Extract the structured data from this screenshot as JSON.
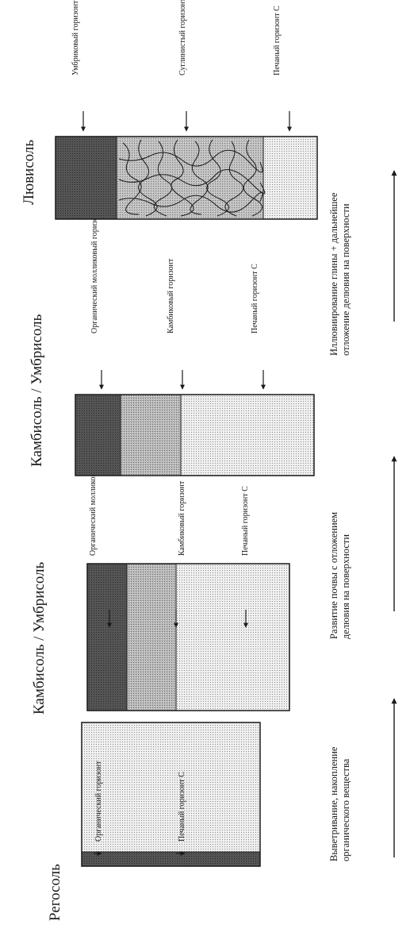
{
  "profiles": [
    {
      "name": "Регосоль",
      "horizons": [
        {
          "label": "Органический горизонт"
        },
        {
          "label": "Печаный горизонт С"
        }
      ]
    },
    {
      "name": "Камбисоль / Умбрисоль",
      "horizons": [
        {
          "label": "Органический молликовый горизонт"
        },
        {
          "label": "Камбиковый горизонт"
        },
        {
          "label": "Печаный горизонт С"
        }
      ]
    },
    {
      "name": "Камбисоль / Умбрисоль",
      "horizons": [
        {
          "label": "Органический молликовый горизонт"
        },
        {
          "label": "Камбиковый горизонт"
        },
        {
          "label": "Печаный горизонт С"
        }
      ]
    },
    {
      "name": "Лювисоль",
      "horizons": [
        {
          "label": "Умбриковый горизонт"
        },
        {
          "label": "Суглинистый горизонт Bt"
        },
        {
          "label": "Печаный горизонт С"
        }
      ]
    }
  ],
  "processes": [
    {
      "text_line1": "Выветривание, накопление",
      "text_line2": "органического вещества"
    },
    {
      "text_line1": "Развитие почвы с отложением",
      "text_line2": "делювия на поверхности"
    },
    {
      "text_line1": "Иллювиирование глины + дальнейшее",
      "text_line2": "отложение делювия на поверхности"
    }
  ],
  "colors": {
    "organic": "#4a4a4a",
    "cambic": "#a8a8a8",
    "sand": "#ececec",
    "bt": "#b4b4b4",
    "outline": "#1a1a1a"
  },
  "icons": {
    "arrow": "arrow-icon",
    "process_arrow": "long-arrow-icon"
  }
}
